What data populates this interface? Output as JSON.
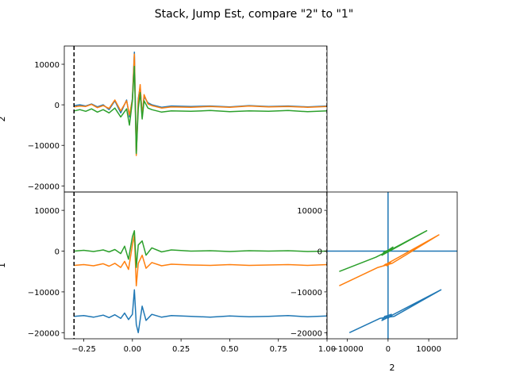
{
  "figure_title": "Stack, Jump Est, compare \"2\" to \"1\"",
  "colors": {
    "series1": "#1f77b4",
    "series2": "#ff7f0e",
    "series3": "#2ca02c",
    "axis": "#000000"
  },
  "chart_data": [
    {
      "type": "line",
      "panel": "top-left",
      "ylabel": "2",
      "xlim": [
        -0.35,
        1.0
      ],
      "ylim": [
        -21500,
        14500
      ],
      "yticks": [
        10000,
        0,
        -10000,
        -20000
      ],
      "ytick_labels": [
        "10000",
        "0",
        "−10000",
        "−20000"
      ],
      "vlines": [
        -0.3,
        1.0
      ],
      "series": [
        {
          "x": [
            -0.3,
            -0.27,
            -0.24,
            -0.21,
            -0.18,
            -0.15,
            -0.12,
            -0.09,
            -0.06,
            -0.03,
            -0.015,
            0.0,
            0.01,
            0.02,
            0.03,
            0.04,
            0.05,
            0.06,
            0.08,
            0.1,
            0.15,
            0.2,
            0.3,
            0.4,
            0.5,
            0.6,
            0.7,
            0.8,
            0.9,
            1.0
          ],
          "y": [
            -200,
            0,
            -300,
            200,
            -500,
            0,
            -1200,
            1000,
            -2000,
            1200,
            -3000,
            1500,
            13000,
            -12000,
            1500,
            4500,
            -2500,
            2000,
            500,
            0,
            -600,
            -300,
            -400,
            -300,
            -500,
            -200,
            -400,
            -300,
            -500,
            -300
          ]
        },
        {
          "x": [
            -0.3,
            -0.27,
            -0.24,
            -0.21,
            -0.18,
            -0.15,
            -0.12,
            -0.09,
            -0.06,
            -0.03,
            -0.015,
            0.0,
            0.01,
            0.02,
            0.03,
            0.04,
            0.05,
            0.06,
            0.08,
            0.1,
            0.15,
            0.2,
            0.3,
            0.4,
            0.5,
            0.6,
            0.7,
            0.8,
            0.9,
            1.0
          ],
          "y": [
            -500,
            -300,
            -400,
            100,
            -700,
            -200,
            -900,
            1200,
            -1500,
            1000,
            -2500,
            1200,
            12500,
            -12500,
            1000,
            5000,
            -3000,
            2500,
            200,
            -200,
            -800,
            -500,
            -600,
            -400,
            -600,
            -300,
            -500,
            -400,
            -600,
            -400
          ]
        },
        {
          "x": [
            -0.3,
            -0.27,
            -0.24,
            -0.21,
            -0.18,
            -0.15,
            -0.12,
            -0.09,
            -0.06,
            -0.03,
            -0.015,
            0.0,
            0.01,
            0.02,
            0.03,
            0.04,
            0.05,
            0.06,
            0.08,
            0.1,
            0.15,
            0.2,
            0.3,
            0.4,
            0.5,
            0.6,
            0.7,
            0.8,
            0.9,
            1.0
          ],
          "y": [
            -1500,
            -1200,
            -1600,
            -1000,
            -1800,
            -1200,
            -2000,
            -800,
            -3000,
            -1000,
            -5000,
            1000,
            9500,
            -12000,
            -1000,
            3000,
            -3500,
            1000,
            -800,
            -1200,
            -1800,
            -1500,
            -1600,
            -1400,
            -1700,
            -1500,
            -1600,
            -1400,
            -1700,
            -1500
          ]
        }
      ]
    },
    {
      "type": "line",
      "panel": "bottom-left",
      "ylabel": "1",
      "xlim": [
        -0.35,
        1.0
      ],
      "ylim": [
        -21500,
        14500
      ],
      "xticks": [
        -0.25,
        0.0,
        0.25,
        0.5,
        0.75,
        1.0
      ],
      "xtick_labels": [
        "−0.25",
        "0.00",
        "0.25",
        "0.50",
        "0.75",
        "1.00"
      ],
      "yticks": [
        10000,
        0,
        -10000,
        -20000
      ],
      "ytick_labels": [
        "10000",
        "0",
        "−10000",
        "−20000"
      ],
      "vlines": [
        -0.3,
        1.0
      ],
      "series": [
        {
          "x": [
            -0.3,
            -0.25,
            -0.2,
            -0.15,
            -0.12,
            -0.09,
            -0.06,
            -0.04,
            -0.02,
            0.0,
            0.01,
            0.02,
            0.03,
            0.05,
            0.07,
            0.1,
            0.15,
            0.2,
            0.3,
            0.4,
            0.5,
            0.6,
            0.7,
            0.8,
            0.9,
            1.0
          ],
          "y": [
            -16000,
            -15800,
            -16200,
            -15700,
            -16300,
            -15600,
            -16500,
            -15200,
            -16800,
            -15500,
            -9500,
            -18000,
            -20000,
            -13500,
            -17000,
            -15500,
            -16200,
            -15800,
            -16000,
            -16200,
            -15900,
            -16100,
            -16000,
            -15800,
            -16100,
            -15900
          ]
        },
        {
          "x": [
            -0.3,
            -0.25,
            -0.2,
            -0.15,
            -0.12,
            -0.09,
            -0.06,
            -0.04,
            -0.02,
            0.0,
            0.01,
            0.02,
            0.03,
            0.05,
            0.07,
            0.1,
            0.15,
            0.2,
            0.3,
            0.4,
            0.5,
            0.6,
            0.7,
            0.8,
            0.9,
            1.0
          ],
          "y": [
            -3500,
            -3300,
            -3600,
            -3100,
            -3700,
            -3000,
            -4000,
            -2500,
            -4500,
            1500,
            4000,
            -8500,
            -3000,
            -1000,
            -4200,
            -2800,
            -3600,
            -3200,
            -3400,
            -3500,
            -3300,
            -3500,
            -3400,
            -3300,
            -3500,
            -3300
          ]
        },
        {
          "x": [
            -0.3,
            -0.25,
            -0.2,
            -0.15,
            -0.12,
            -0.09,
            -0.06,
            -0.04,
            -0.02,
            0.0,
            0.01,
            0.02,
            0.03,
            0.05,
            0.07,
            0.1,
            0.15,
            0.2,
            0.3,
            0.4,
            0.5,
            0.6,
            0.7,
            0.8,
            0.9,
            1.0
          ],
          "y": [
            0,
            200,
            -100,
            300,
            -200,
            400,
            -600,
            1200,
            -2000,
            3500,
            5000,
            -4000,
            1500,
            2500,
            -1000,
            800,
            -200,
            300,
            0,
            100,
            -100,
            100,
            0,
            100,
            -100,
            0
          ]
        }
      ]
    },
    {
      "type": "scatter",
      "panel": "bottom-right",
      "xlabel": "2",
      "xlim": [
        -15000,
        17000
      ],
      "ylim": [
        -21500,
        14500
      ],
      "xticks": [
        -10000,
        0,
        10000
      ],
      "xtick_labels": [
        "−10000",
        "0",
        "10000"
      ],
      "yticks": [
        10000,
        0,
        -10000,
        -20000
      ],
      "ytick_labels": [
        "10000",
        "0",
        "−10000",
        "−20000"
      ],
      "crosshair": [
        0,
        0
      ],
      "series": [
        {
          "x": [
            -9500,
            -2000,
            1500,
            13000,
            -1500,
            -800,
            0,
            800,
            0,
            -500,
            200
          ],
          "y": [
            -20000,
            -16500,
            -16000,
            -9500,
            -17000,
            -16000,
            -15800,
            -15500,
            -16500,
            -16000,
            -15800
          ]
        },
        {
          "x": [
            -12000,
            -2500,
            1000,
            12500,
            -1000,
            -600,
            0,
            600,
            -300,
            200
          ],
          "y": [
            -8500,
            -4000,
            -3000,
            4000,
            -3500,
            -3200,
            -3400,
            -2800,
            -3600,
            -3300
          ]
        },
        {
          "x": [
            -12000,
            -3000,
            1000,
            9500,
            -1500,
            -1000,
            0,
            1200,
            -800,
            500,
            -300
          ],
          "y": [
            -5000,
            -1500,
            500,
            5000,
            -1000,
            -200,
            200,
            1000,
            -600,
            100,
            0
          ]
        }
      ]
    }
  ]
}
